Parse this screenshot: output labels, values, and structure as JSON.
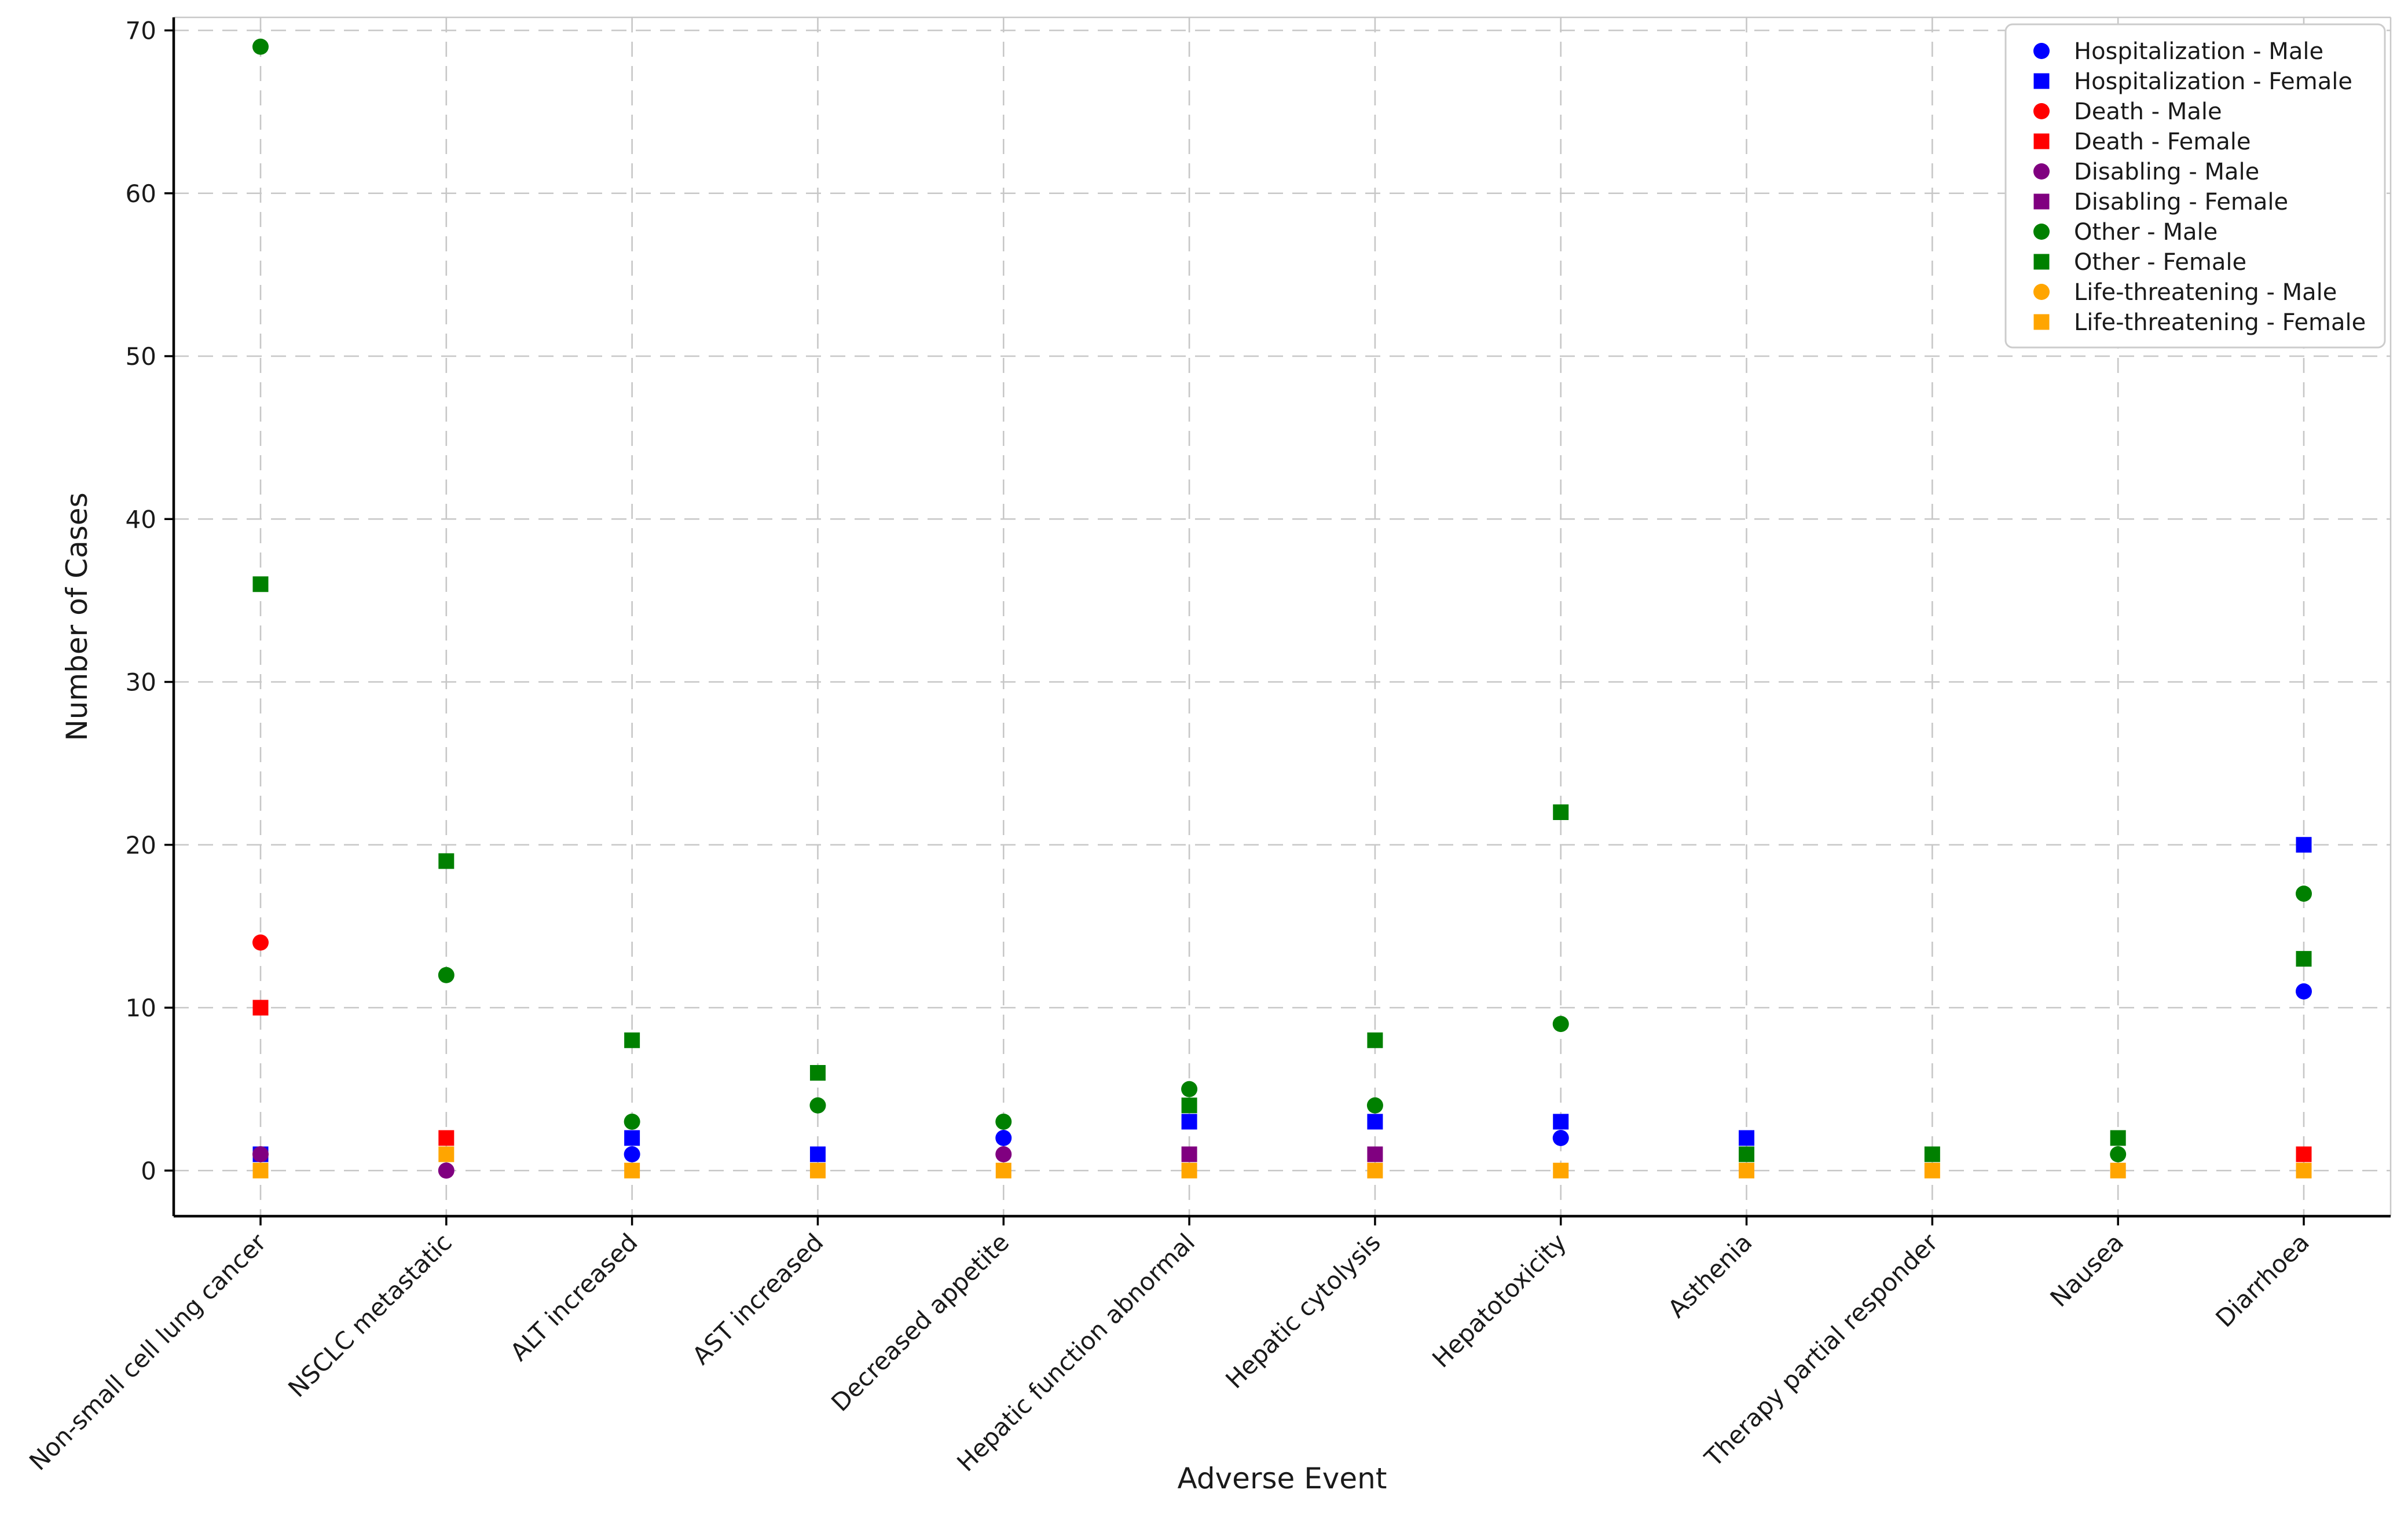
{
  "chart_data": {
    "type": "scatter",
    "title": "",
    "xlabel": "Adverse Event",
    "ylabel": "Number of Cases",
    "grid": true,
    "legend_position": "upper right",
    "ylim": [
      -2.8,
      70.8
    ],
    "yticks": [
      0,
      10,
      20,
      30,
      40,
      50,
      60,
      70
    ],
    "categories": [
      "Non-small cell lung cancer",
      "NSCLC metastatic",
      "ALT increased",
      "AST increased",
      "Decreased appetite",
      "Hepatic function abnormal",
      "Hepatic cytolysis",
      "Hepatotoxicity",
      "Asthenia",
      "Therapy partial responder",
      "Nausea",
      "Diarrhoea"
    ],
    "series": [
      {
        "name": "Hospitalization - Male",
        "color": "#0000ff",
        "marker": "circle",
        "values": [
          null,
          null,
          1,
          null,
          2,
          null,
          null,
          2,
          null,
          null,
          null,
          11
        ]
      },
      {
        "name": "Hospitalization - Female",
        "color": "#0000ff",
        "marker": "square",
        "values": [
          1,
          null,
          2,
          1,
          null,
          3,
          3,
          3,
          2,
          null,
          null,
          20
        ]
      },
      {
        "name": "Death - Male",
        "color": "#ff0000",
        "marker": "circle",
        "values": [
          14,
          null,
          null,
          null,
          null,
          null,
          null,
          null,
          null,
          null,
          null,
          null
        ]
      },
      {
        "name": "Death - Female",
        "color": "#ff0000",
        "marker": "square",
        "values": [
          10,
          2,
          null,
          null,
          null,
          null,
          null,
          null,
          null,
          null,
          null,
          1
        ]
      },
      {
        "name": "Disabling - Male",
        "color": "#800080",
        "marker": "circle",
        "values": [
          1,
          0,
          null,
          null,
          1,
          null,
          null,
          null,
          null,
          null,
          null,
          null
        ]
      },
      {
        "name": "Disabling - Female",
        "color": "#800080",
        "marker": "square",
        "values": [
          null,
          null,
          null,
          null,
          null,
          1,
          1,
          null,
          null,
          null,
          null,
          null
        ]
      },
      {
        "name": "Other - Male",
        "color": "#008000",
        "marker": "circle",
        "values": [
          69,
          12,
          3,
          4,
          3,
          5,
          4,
          9,
          null,
          null,
          1,
          17
        ]
      },
      {
        "name": "Other - Female",
        "color": "#008000",
        "marker": "square",
        "values": [
          36,
          19,
          8,
          6,
          null,
          4,
          8,
          22,
          1,
          1,
          2,
          13
        ]
      },
      {
        "name": "Life-threatening - Male",
        "color": "#ffa500",
        "marker": "circle",
        "values": [
          null,
          null,
          null,
          null,
          null,
          null,
          null,
          null,
          null,
          null,
          null,
          null
        ]
      },
      {
        "name": "Life-threatening - Female",
        "color": "#ffa500",
        "marker": "square",
        "values": [
          0,
          1,
          0,
          0,
          0,
          0,
          0,
          0,
          0,
          0,
          0,
          0
        ]
      }
    ],
    "style": {
      "grid_color": "#c7c7c7",
      "spine_color_main": "#000000",
      "spine_color_light": "#c8c8c8",
      "legend_border_color": "#cccccc",
      "background": "#ffffff"
    }
  }
}
